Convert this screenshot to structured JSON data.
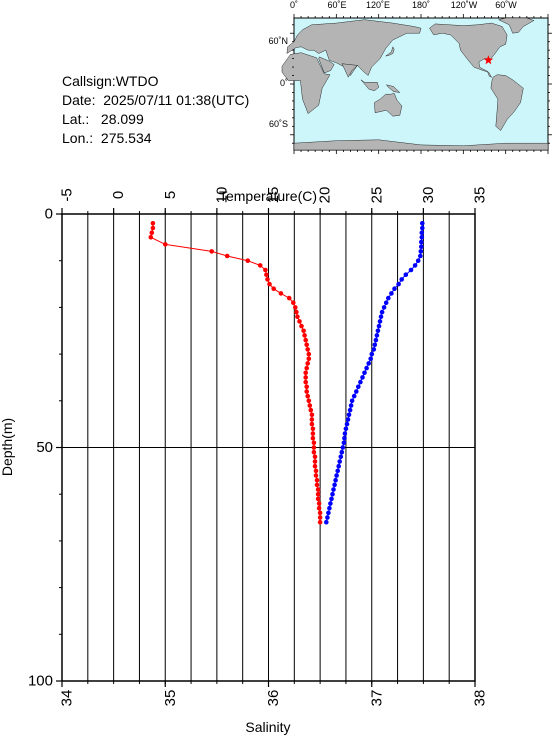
{
  "header": {
    "callsign_label": "Callsign:",
    "callsign": "WTDO",
    "date_label": "Date:",
    "date": "2025/07/11 01:38(UTC)",
    "lat_label": "Lat.:",
    "lat": "28.099",
    "lon_label": "Lon.:",
    "lon": "275.534"
  },
  "map": {
    "top_labels": [
      "0˚",
      "60˚E",
      "120˚E",
      "180˚",
      "120˚W",
      "60˚W"
    ],
    "left_labels": [
      "60˚N",
      "0˚",
      "60˚S"
    ],
    "ocean_color": "#cdf6fb",
    "land_color": "#b4b4b4",
    "marker_color": "#ff0000",
    "marker_lon": 275.534,
    "marker_lat": 28.099
  },
  "chart_data": {
    "type": "line",
    "top_axis": {
      "label": "Temperature(C)",
      "range": [
        -5,
        35
      ],
      "ticks": [
        "-5",
        "0",
        "5",
        "10",
        "15",
        "20",
        "25",
        "30",
        "35"
      ]
    },
    "bottom_axis": {
      "label": "Salinity",
      "range": [
        34,
        38
      ],
      "ticks": [
        "34",
        "35",
        "36",
        "37",
        "38"
      ]
    },
    "y_axis": {
      "label": "Depth(m)",
      "range": [
        0,
        100
      ],
      "inverted": true,
      "ticks": [
        "0",
        "50",
        "100"
      ]
    },
    "grid": true,
    "series": [
      {
        "color": "#0000ff",
        "axis": "temperature",
        "points": [
          [
            29.9,
            2
          ],
          [
            29.9,
            3
          ],
          [
            29.85,
            4
          ],
          [
            29.85,
            5
          ],
          [
            29.8,
            6
          ],
          [
            29.8,
            7
          ],
          [
            29.75,
            8
          ],
          [
            29.7,
            9
          ],
          [
            29.5,
            10
          ],
          [
            29.2,
            11
          ],
          [
            28.8,
            12
          ],
          [
            28.3,
            13
          ],
          [
            27.9,
            14
          ],
          [
            27.6,
            15
          ],
          [
            27.2,
            16
          ],
          [
            26.9,
            17
          ],
          [
            26.6,
            18
          ],
          [
            26.4,
            19
          ],
          [
            26.2,
            20
          ],
          [
            26.0,
            21
          ],
          [
            25.9,
            22
          ],
          [
            25.8,
            23
          ],
          [
            25.7,
            24
          ],
          [
            25.6,
            25
          ],
          [
            25.5,
            26
          ],
          [
            25.4,
            27
          ],
          [
            25.3,
            28
          ],
          [
            25.2,
            29
          ],
          [
            25.0,
            30
          ],
          [
            24.9,
            31
          ],
          [
            24.7,
            32
          ],
          [
            24.5,
            33
          ],
          [
            24.3,
            34
          ],
          [
            24.1,
            35
          ],
          [
            23.9,
            36
          ],
          [
            23.7,
            37
          ],
          [
            23.5,
            38
          ],
          [
            23.3,
            39
          ],
          [
            23.1,
            40
          ],
          [
            23.0,
            41
          ],
          [
            22.9,
            42
          ],
          [
            22.8,
            43
          ],
          [
            22.7,
            44
          ],
          [
            22.6,
            45
          ],
          [
            22.5,
            46
          ],
          [
            22.4,
            47
          ],
          [
            22.35,
            48
          ],
          [
            22.3,
            49
          ],
          [
            22.2,
            50
          ],
          [
            22.1,
            51
          ],
          [
            22.0,
            52
          ],
          [
            21.9,
            53
          ],
          [
            21.8,
            54
          ],
          [
            21.7,
            55
          ],
          [
            21.6,
            56
          ],
          [
            21.5,
            57
          ],
          [
            21.4,
            58
          ],
          [
            21.3,
            59
          ],
          [
            21.2,
            60
          ],
          [
            21.1,
            61
          ],
          [
            21.0,
            62
          ],
          [
            20.9,
            63
          ],
          [
            20.8,
            64
          ],
          [
            20.7,
            65
          ],
          [
            20.6,
            66
          ]
        ]
      },
      {
        "color": "#ff0000",
        "axis": "salinity",
        "points": [
          [
            34.88,
            2
          ],
          [
            34.88,
            3
          ],
          [
            34.87,
            4
          ],
          [
            34.86,
            5
          ],
          [
            35.0,
            6.5
          ],
          [
            35.45,
            8
          ],
          [
            35.6,
            9
          ],
          [
            35.8,
            10
          ],
          [
            35.92,
            11
          ],
          [
            35.97,
            12
          ],
          [
            35.98,
            13
          ],
          [
            35.99,
            14
          ],
          [
            36.01,
            15
          ],
          [
            36.05,
            16
          ],
          [
            36.12,
            17
          ],
          [
            36.2,
            18
          ],
          [
            36.24,
            19
          ],
          [
            36.26,
            20
          ],
          [
            36.27,
            21
          ],
          [
            36.28,
            22
          ],
          [
            36.3,
            23
          ],
          [
            36.32,
            24
          ],
          [
            36.34,
            25
          ],
          [
            36.35,
            26
          ],
          [
            36.36,
            27
          ],
          [
            36.37,
            28
          ],
          [
            36.38,
            29
          ],
          [
            36.39,
            30
          ],
          [
            36.39,
            31
          ],
          [
            36.38,
            32
          ],
          [
            36.37,
            33
          ],
          [
            36.36,
            34
          ],
          [
            36.36,
            35
          ],
          [
            36.36,
            36
          ],
          [
            36.37,
            37
          ],
          [
            36.37,
            38
          ],
          [
            36.38,
            39
          ],
          [
            36.39,
            40
          ],
          [
            36.4,
            41
          ],
          [
            36.41,
            42
          ],
          [
            36.42,
            43
          ],
          [
            36.42,
            44
          ],
          [
            36.42,
            45
          ],
          [
            36.43,
            46
          ],
          [
            36.43,
            47
          ],
          [
            36.43,
            48
          ],
          [
            36.44,
            49
          ],
          [
            36.44,
            50
          ],
          [
            36.44,
            51
          ],
          [
            36.45,
            52
          ],
          [
            36.45,
            53
          ],
          [
            36.45,
            54
          ],
          [
            36.46,
            55
          ],
          [
            36.46,
            56
          ],
          [
            36.47,
            57
          ],
          [
            36.47,
            58
          ],
          [
            36.48,
            59
          ],
          [
            36.48,
            60
          ],
          [
            36.48,
            61
          ],
          [
            36.49,
            62
          ],
          [
            36.49,
            63
          ],
          [
            36.5,
            64
          ],
          [
            36.5,
            65
          ],
          [
            36.5,
            66
          ]
        ]
      }
    ]
  }
}
